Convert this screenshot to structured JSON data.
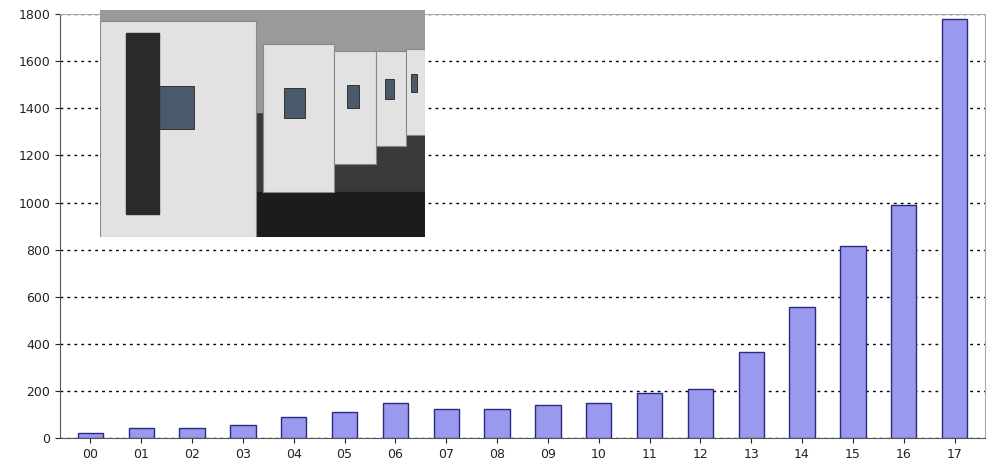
{
  "chart_data": {
    "type": "bar",
    "categories": [
      "00",
      "01",
      "02",
      "03",
      "04",
      "05",
      "06",
      "07",
      "08",
      "09",
      "10",
      "11",
      "12",
      "13",
      "14",
      "15",
      "16",
      "17"
    ],
    "values": [
      23,
      42,
      42,
      55,
      88,
      110,
      148,
      125,
      125,
      138,
      148,
      190,
      208,
      365,
      558,
      817,
      990,
      1780
    ],
    "color": "#9999ee",
    "ylim": [
      0,
      1800
    ],
    "yticks": [
      0,
      200,
      400,
      600,
      800,
      1000,
      1200,
      1400,
      1600,
      1800
    ],
    "grid": true
  }
}
